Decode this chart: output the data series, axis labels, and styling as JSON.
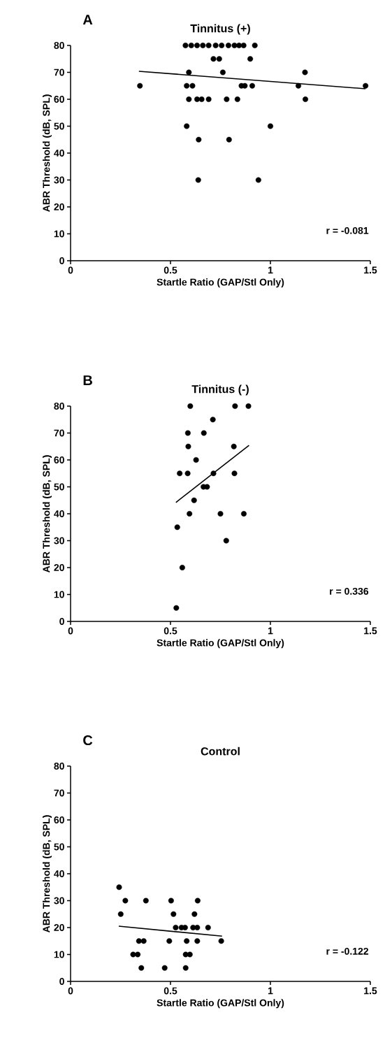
{
  "chart_data": [
    {
      "type": "scatter",
      "title": "Tinnitus (+)",
      "xlabel": "Startle Ratio (GAP/Stl Only)",
      "ylabel": "ABR Threshold (dB, SPL)",
      "annotations": [
        "A",
        "r = -0.081"
      ],
      "xlim": [
        0,
        1.5
      ],
      "ylim": [
        0,
        80
      ],
      "xticks": [
        0,
        0.5,
        1,
        1.5
      ],
      "yticks": [
        0,
        10,
        20,
        30,
        40,
        50,
        60,
        70,
        80
      ],
      "marker": "circle",
      "series": [
        {
          "color": "#000000",
          "x": [
            0.575,
            0.604,
            0.633,
            0.662,
            0.691,
            0.726,
            0.756,
            0.79,
            0.82,
            0.843,
            0.866,
            0.922,
            0.715,
            0.744,
            0.899,
            0.592,
            0.762,
            1.173,
            0.347,
            0.581,
            0.61,
            0.855,
            0.872,
            0.909,
            1.14,
            1.476,
            0.592,
            0.633,
            0.656,
            0.691,
            0.781,
            0.835,
            1.175,
            0.581,
            1.0,
            0.641,
            0.793,
            0.639,
            0.94
          ],
          "values": [
            80,
            80,
            80,
            80,
            80,
            80,
            80,
            80,
            80,
            80,
            80,
            80,
            75,
            75,
            75,
            70,
            70,
            70,
            65,
            65,
            65,
            65,
            65,
            65,
            65,
            65,
            60,
            60,
            60,
            60,
            60,
            60,
            60,
            50,
            50,
            45,
            45,
            30,
            30
          ]
        },
        {
          "type": "line",
          "color": "#000000",
          "marker": "none",
          "x": [
            0.342,
            1.476
          ],
          "values": [
            70.4,
            63.9
          ]
        }
      ]
    },
    {
      "type": "scatter",
      "title": "Tinnitus (-)",
      "xlabel": "Startle Ratio (GAP/Stl Only)",
      "ylabel": "ABR Threshold (dB, SPL)",
      "annotations": [
        "B",
        "r = 0.336"
      ],
      "xlim": [
        0,
        1.5
      ],
      "ylim": [
        0,
        80
      ],
      "xticks": [
        0,
        0.5,
        1,
        1.5
      ],
      "yticks": [
        0,
        10,
        20,
        30,
        40,
        50,
        60,
        70,
        80
      ],
      "marker": "circle",
      "series": [
        {
          "color": "#000000",
          "x": [
            0.599,
            0.823,
            0.89,
            0.712,
            0.587,
            0.667,
            0.589,
            0.817,
            0.628,
            0.546,
            0.586,
            0.715,
            0.82,
            0.665,
            0.683,
            0.618,
            0.595,
            0.75,
            0.867,
            0.534,
            0.779,
            0.559,
            0.529
          ],
          "values": [
            80,
            80,
            80,
            75,
            70,
            70,
            65,
            65,
            60,
            55,
            55,
            55,
            55,
            50,
            50,
            45,
            40,
            40,
            40,
            35,
            30,
            20,
            5
          ]
        },
        {
          "type": "line",
          "color": "#000000",
          "marker": "none",
          "x": [
            0.527,
            0.893
          ],
          "values": [
            44.2,
            65.4
          ]
        }
      ]
    },
    {
      "type": "scatter",
      "title": "Control",
      "xlabel": "Startle Ratio (GAP/Stl Only)",
      "ylabel": "ABR Threshold (dB, SPL)",
      "annotations": [
        "C",
        "r = -0.122"
      ],
      "xlim": [
        0,
        1.5
      ],
      "ylim": [
        0,
        80
      ],
      "xticks": [
        0,
        0.5,
        1,
        1.5
      ],
      "yticks": [
        0,
        10,
        20,
        30,
        40,
        50,
        60,
        70,
        80
      ],
      "marker": "circle",
      "series": [
        {
          "color": "#000000",
          "x": [
            0.243,
            0.274,
            0.377,
            0.503,
            0.636,
            0.251,
            0.515,
            0.62,
            0.526,
            0.555,
            0.573,
            0.613,
            0.634,
            0.688,
            0.342,
            0.366,
            0.494,
            0.581,
            0.634,
            0.754,
            0.313,
            0.336,
            0.576,
            0.597,
            0.354,
            0.471,
            0.576
          ],
          "values": [
            35,
            30,
            30,
            30,
            30,
            25,
            25,
            25,
            20,
            20,
            20,
            20,
            20,
            20,
            15,
            15,
            15,
            15,
            15,
            15,
            10,
            10,
            10,
            10,
            5,
            5,
            5
          ]
        },
        {
          "type": "line",
          "color": "#000000",
          "marker": "none",
          "x": [
            0.241,
            0.758
          ],
          "values": [
            20.5,
            16.8
          ]
        }
      ]
    }
  ]
}
